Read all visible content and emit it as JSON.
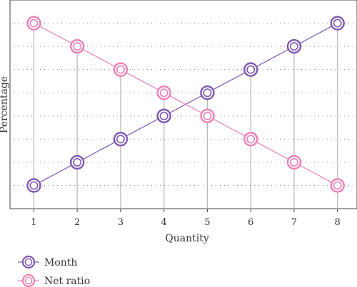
{
  "chart_data": {
    "type": "line",
    "title": "",
    "xlabel": "Quantity",
    "ylabel": "Percentage",
    "x": [
      1,
      2,
      3,
      4,
      5,
      6,
      7,
      8
    ],
    "xlim": [
      0.45,
      8.45
    ],
    "ylim": [
      0,
      9
    ],
    "grid": "horizontal dotted",
    "legend_position": "bottom-left",
    "series": [
      {
        "name": "Month",
        "values": [
          1,
          2,
          3,
          4,
          5,
          6,
          7,
          8
        ],
        "color": "#7e57b4"
      },
      {
        "name": "Net ratio",
        "values": [
          8,
          7,
          6,
          5,
          4,
          3,
          2,
          1
        ],
        "color": "#ee7fb6"
      }
    ],
    "drop_lines": true,
    "drop_line_color": "#b5b5b5",
    "grid_color": "#8a8a8a"
  }
}
